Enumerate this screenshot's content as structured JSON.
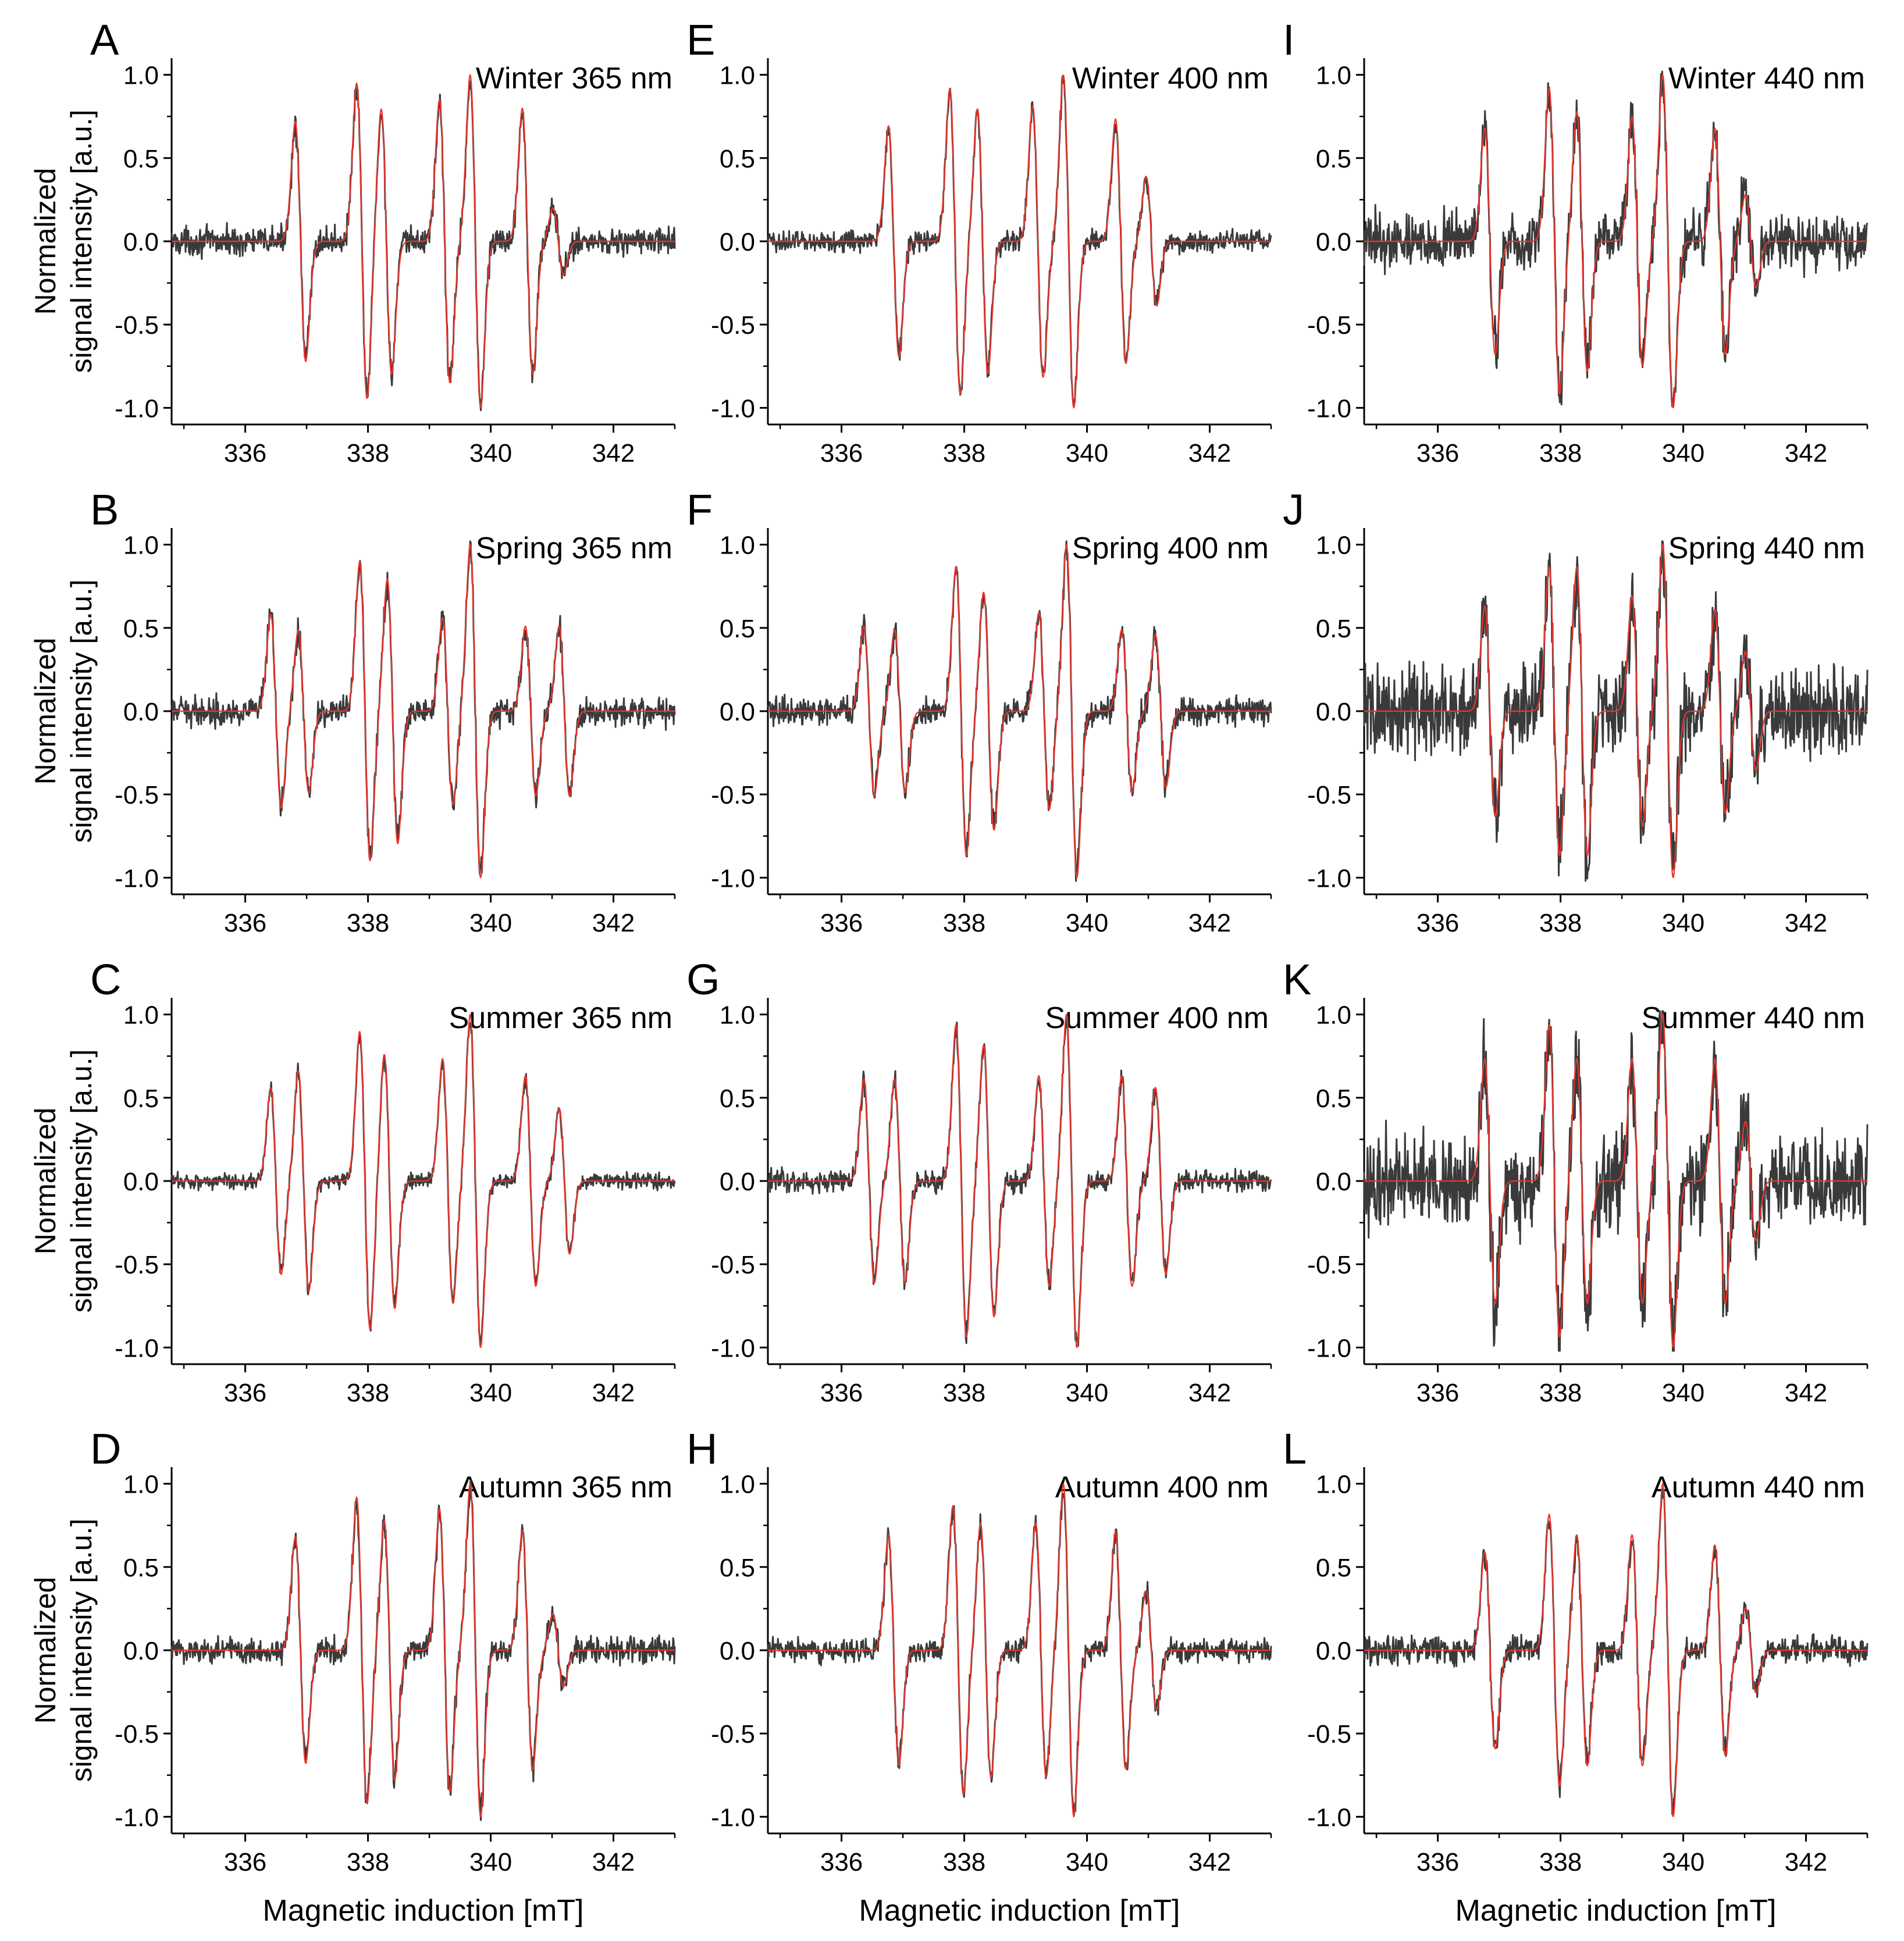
{
  "colors": {
    "experimental": "#3a3a3a",
    "fit": "#e8372e",
    "axis": "#000000"
  },
  "shared": {
    "ylabel_line1": "Normalized",
    "ylabel_line2": "signal intensity [a.u.]",
    "xlabel": "Magnetic induction [mT]"
  },
  "chart_data": [
    {
      "type": "line",
      "letter": "A",
      "title": "Winter 365 nm",
      "season": "Winter",
      "wavelength_nm": 365,
      "noise": 0.05,
      "xlim": [
        334.8,
        343.0
      ],
      "ylim": [
        -1.1,
        1.1
      ],
      "xticks": [
        336,
        338,
        340,
        342
      ],
      "yticks": [
        1.0,
        0.5,
        0.0,
        -0.5,
        -1.0
      ],
      "lines": [
        {
          "x": 336.9,
          "h": 0.72
        },
        {
          "x": 337.9,
          "h": 0.95
        },
        {
          "x": 338.3,
          "h": 0.8
        },
        {
          "x": 339.25,
          "h": 0.85
        },
        {
          "x": 339.75,
          "h": 1.0
        },
        {
          "x": 340.6,
          "h": 0.8
        },
        {
          "x": 341.1,
          "h": 0.2
        }
      ],
      "series": [
        {
          "name": "",
          "role": "experimental"
        },
        {
          "name": "",
          "role": "fit"
        }
      ]
    },
    {
      "type": "line",
      "letter": "B",
      "title": "Spring 365 nm",
      "season": "Spring",
      "wavelength_nm": 365,
      "noise": 0.05,
      "xlim": [
        334.8,
        343.0
      ],
      "ylim": [
        -1.1,
        1.1
      ],
      "xticks": [
        336,
        338,
        340,
        342
      ],
      "yticks": [
        1.0,
        0.5,
        0.0,
        -0.5,
        -1.0
      ],
      "lines": [
        {
          "x": 336.5,
          "h": 0.57
        },
        {
          "x": 336.95,
          "h": 0.48
        },
        {
          "x": 337.95,
          "h": 0.88
        },
        {
          "x": 338.4,
          "h": 0.78
        },
        {
          "x": 339.3,
          "h": 0.55
        },
        {
          "x": 339.75,
          "h": 0.98
        },
        {
          "x": 340.65,
          "h": 0.5
        },
        {
          "x": 341.2,
          "h": 0.5
        }
      ],
      "series": [
        {
          "name": "",
          "role": "experimental"
        },
        {
          "name": "",
          "role": "fit"
        }
      ]
    },
    {
      "type": "line",
      "letter": "C",
      "title": "Summer 365 nm",
      "season": "Summer",
      "wavelength_nm": 365,
      "noise": 0.03,
      "xlim": [
        334.8,
        343.0
      ],
      "ylim": [
        -1.1,
        1.1
      ],
      "xticks": [
        336,
        338,
        340,
        342
      ],
      "yticks": [
        1.0,
        0.5,
        0.0,
        -0.5,
        -1.0
      ],
      "lines": [
        {
          "x": 336.5,
          "h": 0.55
        },
        {
          "x": 336.95,
          "h": 0.65
        },
        {
          "x": 337.95,
          "h": 0.88
        },
        {
          "x": 338.35,
          "h": 0.75
        },
        {
          "x": 339.3,
          "h": 0.72
        },
        {
          "x": 339.75,
          "h": 0.98
        },
        {
          "x": 340.65,
          "h": 0.62
        },
        {
          "x": 341.2,
          "h": 0.43
        }
      ],
      "series": [
        {
          "name": "",
          "role": "experimental"
        },
        {
          "name": "",
          "role": "fit"
        }
      ]
    },
    {
      "type": "line",
      "letter": "D",
      "title": "Autumn 365 nm",
      "season": "Autumn",
      "wavelength_nm": 365,
      "noise": 0.05,
      "xlim": [
        334.8,
        343.0
      ],
      "ylim": [
        -1.1,
        1.1
      ],
      "xticks": [
        336,
        338,
        340,
        342
      ],
      "yticks": [
        1.0,
        0.5,
        0.0,
        -0.5,
        -1.0
      ],
      "lines": [
        {
          "x": 336.9,
          "h": 0.68
        },
        {
          "x": 337.9,
          "h": 0.92
        },
        {
          "x": 338.35,
          "h": 0.78
        },
        {
          "x": 339.25,
          "h": 0.85
        },
        {
          "x": 339.75,
          "h": 1.0
        },
        {
          "x": 340.6,
          "h": 0.72
        },
        {
          "x": 341.1,
          "h": 0.22
        }
      ],
      "series": [
        {
          "name": "",
          "role": "experimental"
        },
        {
          "name": "",
          "role": "fit"
        }
      ]
    },
    {
      "type": "line",
      "letter": "E",
      "title": "Winter 400 nm",
      "season": "Winter",
      "wavelength_nm": 400,
      "noise": 0.04,
      "xlim": [
        334.8,
        343.0
      ],
      "ylim": [
        -1.1,
        1.1
      ],
      "xticks": [
        336,
        338,
        340,
        342
      ],
      "yticks": [
        1.0,
        0.5,
        0.0,
        -0.5,
        -1.0
      ],
      "lines": [
        {
          "x": 336.85,
          "h": 0.68
        },
        {
          "x": 337.85,
          "h": 0.9
        },
        {
          "x": 338.3,
          "h": 0.78
        },
        {
          "x": 339.2,
          "h": 0.8
        },
        {
          "x": 339.7,
          "h": 0.98
        },
        {
          "x": 340.55,
          "h": 0.72
        },
        {
          "x": 341.05,
          "h": 0.38
        }
      ],
      "series": [
        {
          "name": "",
          "role": "experimental"
        },
        {
          "name": "",
          "role": "fit"
        }
      ]
    },
    {
      "type": "line",
      "letter": "F",
      "title": "Spring 400 nm",
      "season": "Spring",
      "wavelength_nm": 400,
      "noise": 0.05,
      "xlim": [
        334.8,
        343.0
      ],
      "ylim": [
        -1.1,
        1.1
      ],
      "xticks": [
        336,
        338,
        340,
        342
      ],
      "yticks": [
        1.0,
        0.5,
        0.0,
        -0.5,
        -1.0
      ],
      "lines": [
        {
          "x": 336.45,
          "h": 0.5
        },
        {
          "x": 336.95,
          "h": 0.48
        },
        {
          "x": 337.95,
          "h": 0.85
        },
        {
          "x": 338.4,
          "h": 0.7
        },
        {
          "x": 339.3,
          "h": 0.58
        },
        {
          "x": 339.75,
          "h": 0.98
        },
        {
          "x": 340.65,
          "h": 0.48
        },
        {
          "x": 341.2,
          "h": 0.45
        }
      ],
      "series": [
        {
          "name": "",
          "role": "experimental"
        },
        {
          "name": "",
          "role": "fit"
        }
      ]
    },
    {
      "type": "line",
      "letter": "G",
      "title": "Summer 400 nm",
      "season": "Summer",
      "wavelength_nm": 400,
      "noise": 0.04,
      "xlim": [
        334.8,
        343.0
      ],
      "ylim": [
        -1.1,
        1.1
      ],
      "xticks": [
        336,
        338,
        340,
        342
      ],
      "yticks": [
        1.0,
        0.5,
        0.0,
        -0.5,
        -1.0
      ],
      "lines": [
        {
          "x": 336.45,
          "h": 0.6
        },
        {
          "x": 336.95,
          "h": 0.6
        },
        {
          "x": 337.95,
          "h": 0.92
        },
        {
          "x": 338.4,
          "h": 0.8
        },
        {
          "x": 339.3,
          "h": 0.62
        },
        {
          "x": 339.75,
          "h": 0.98
        },
        {
          "x": 340.65,
          "h": 0.62
        },
        {
          "x": 341.2,
          "h": 0.55
        }
      ],
      "series": [
        {
          "name": "",
          "role": "experimental"
        },
        {
          "name": "",
          "role": "fit"
        }
      ]
    },
    {
      "type": "line",
      "letter": "H",
      "title": "Autumn 400 nm",
      "season": "Autumn",
      "wavelength_nm": 400,
      "noise": 0.04,
      "xlim": [
        334.8,
        343.0
      ],
      "ylim": [
        -1.1,
        1.1
      ],
      "xticks": [
        336,
        338,
        340,
        342
      ],
      "yticks": [
        1.0,
        0.5,
        0.0,
        -0.5,
        -1.0
      ],
      "lines": [
        {
          "x": 336.85,
          "h": 0.68
        },
        {
          "x": 337.9,
          "h": 0.85
        },
        {
          "x": 338.35,
          "h": 0.75
        },
        {
          "x": 339.25,
          "h": 0.75
        },
        {
          "x": 339.7,
          "h": 0.98
        },
        {
          "x": 340.55,
          "h": 0.7
        },
        {
          "x": 341.05,
          "h": 0.35
        }
      ],
      "series": [
        {
          "name": "",
          "role": "experimental"
        },
        {
          "name": "",
          "role": "fit"
        }
      ]
    },
    {
      "type": "line",
      "letter": "I",
      "title": "Winter 440 nm",
      "season": "Winter",
      "wavelength_nm": 440,
      "noise": 0.1,
      "xlim": [
        334.8,
        343.0
      ],
      "ylim": [
        -1.1,
        1.1
      ],
      "xticks": [
        336,
        338,
        340,
        342
      ],
      "yticks": [
        1.0,
        0.5,
        0.0,
        -0.5,
        -1.0
      ],
      "lines": [
        {
          "x": 336.85,
          "h": 0.68
        },
        {
          "x": 337.9,
          "h": 0.92
        },
        {
          "x": 338.35,
          "h": 0.78
        },
        {
          "x": 339.25,
          "h": 0.75
        },
        {
          "x": 339.75,
          "h": 1.0
        },
        {
          "x": 340.6,
          "h": 0.68
        },
        {
          "x": 341.1,
          "h": 0.28
        }
      ],
      "series": [
        {
          "name": "",
          "role": "experimental"
        },
        {
          "name": "",
          "role": "fit"
        }
      ]
    },
    {
      "type": "line",
      "letter": "J",
      "title": "Spring 440 nm",
      "season": "Spring",
      "wavelength_nm": 440,
      "noise": 0.16,
      "xlim": [
        334.8,
        343.0
      ],
      "ylim": [
        -1.1,
        1.1
      ],
      "xticks": [
        336,
        338,
        340,
        342
      ],
      "yticks": [
        1.0,
        0.5,
        0.0,
        -0.5,
        -1.0
      ],
      "lines": [
        {
          "x": 336.85,
          "h": 0.62
        },
        {
          "x": 337.9,
          "h": 0.85
        },
        {
          "x": 338.35,
          "h": 0.85
        },
        {
          "x": 339.25,
          "h": 0.68
        },
        {
          "x": 339.75,
          "h": 0.98
        },
        {
          "x": 340.6,
          "h": 0.6
        },
        {
          "x": 341.1,
          "h": 0.35
        }
      ],
      "series": [
        {
          "name": "",
          "role": "experimental"
        },
        {
          "name": "",
          "role": "fit"
        }
      ]
    },
    {
      "type": "line",
      "letter": "K",
      "title": "Summer 440 nm",
      "season": "Summer",
      "wavelength_nm": 440,
      "noise": 0.17,
      "xlim": [
        334.8,
        343.0
      ],
      "ylim": [
        -1.1,
        1.1
      ],
      "xticks": [
        336,
        338,
        340,
        342
      ],
      "yticks": [
        1.0,
        0.5,
        0.0,
        -0.5,
        -1.0
      ],
      "lines": [
        {
          "x": 336.85,
          "h": 0.72
        },
        {
          "x": 337.9,
          "h": 0.92
        },
        {
          "x": 338.35,
          "h": 0.72
        },
        {
          "x": 339.25,
          "h": 0.72
        },
        {
          "x": 339.75,
          "h": 0.98
        },
        {
          "x": 340.6,
          "h": 0.72
        },
        {
          "x": 341.1,
          "h": 0.35
        }
      ],
      "series": [
        {
          "name": "",
          "role": "experimental"
        },
        {
          "name": "",
          "role": "fit"
        }
      ]
    },
    {
      "type": "line",
      "letter": "L",
      "title": "Autumn 440 nm",
      "season": "Autumn",
      "wavelength_nm": 440,
      "noise": 0.05,
      "xlim": [
        334.8,
        343.0
      ],
      "ylim": [
        -1.1,
        1.1
      ],
      "xticks": [
        336,
        338,
        340,
        342
      ],
      "yticks": [
        1.0,
        0.5,
        0.0,
        -0.5,
        -1.0
      ],
      "lines": [
        {
          "x": 336.85,
          "h": 0.58
        },
        {
          "x": 337.9,
          "h": 0.8
        },
        {
          "x": 338.35,
          "h": 0.68
        },
        {
          "x": 339.25,
          "h": 0.68
        },
        {
          "x": 339.75,
          "h": 0.98
        },
        {
          "x": 340.6,
          "h": 0.62
        },
        {
          "x": 341.1,
          "h": 0.25
        }
      ],
      "series": [
        {
          "name": "",
          "role": "experimental"
        },
        {
          "name": "",
          "role": "fit"
        }
      ]
    }
  ]
}
